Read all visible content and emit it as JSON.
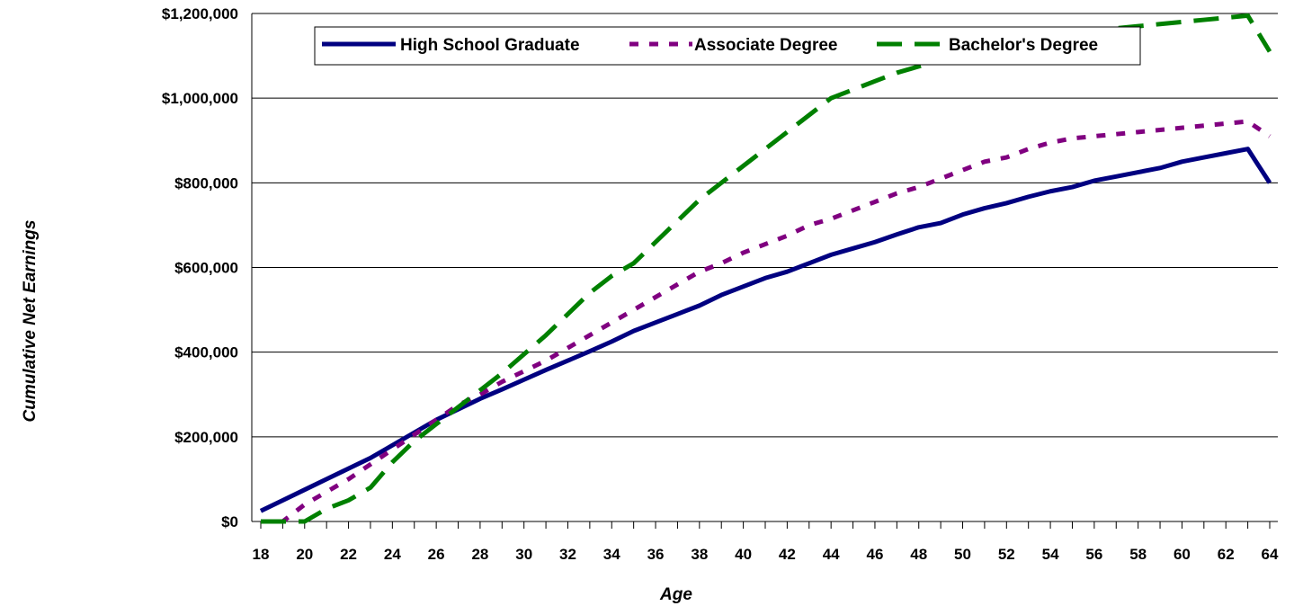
{
  "chart_data": {
    "type": "line",
    "title": "",
    "xlabel": "Age",
    "ylabel": "Cumulative Net Earnings",
    "x": [
      18,
      19,
      20,
      21,
      22,
      23,
      24,
      25,
      26,
      27,
      28,
      29,
      30,
      31,
      32,
      33,
      34,
      35,
      36,
      37,
      38,
      39,
      40,
      41,
      42,
      43,
      44,
      45,
      46,
      47,
      48,
      49,
      50,
      51,
      52,
      53,
      54,
      55,
      56,
      57,
      58,
      59,
      60,
      61,
      62,
      63,
      64
    ],
    "x_ticks": [
      "18",
      "20",
      "22",
      "24",
      "26",
      "28",
      "30",
      "32",
      "34",
      "36",
      "38",
      "40",
      "42",
      "44",
      "46",
      "48",
      "50",
      "52",
      "54",
      "56",
      "58",
      "60",
      "62",
      "64"
    ],
    "y_ticks": [
      "$0",
      "$200,000",
      "$400,000",
      "$600,000",
      "$800,000",
      "$1,000,000",
      "$1,200,000"
    ],
    "ylim": [
      0,
      1200000
    ],
    "grid": true,
    "legend_position": "top",
    "series": [
      {
        "name": "High School Graduate",
        "color": "#000080",
        "style": "solid",
        "values": [
          25000,
          50000,
          75000,
          100000,
          125000,
          150000,
          180000,
          210000,
          240000,
          265000,
          290000,
          312000,
          335000,
          358000,
          380000,
          402000,
          425000,
          450000,
          470000,
          490000,
          510000,
          535000,
          555000,
          575000,
          590000,
          610000,
          630000,
          645000,
          660000,
          678000,
          695000,
          705000,
          725000,
          740000,
          752000,
          767000,
          780000,
          790000,
          805000,
          815000,
          825000,
          835000,
          850000,
          860000,
          870000,
          880000,
          800000
        ]
      },
      {
        "name": "Associate Degree",
        "color": "#800080",
        "style": "dotted",
        "values": [
          0,
          0,
          40000,
          70000,
          100000,
          135000,
          170000,
          205000,
          240000,
          275000,
          300000,
          330000,
          355000,
          380000,
          410000,
          440000,
          470000,
          500000,
          530000,
          560000,
          590000,
          610000,
          635000,
          655000,
          675000,
          700000,
          715000,
          735000,
          755000,
          775000,
          790000,
          810000,
          830000,
          850000,
          860000,
          880000,
          895000,
          905000,
          910000,
          915000,
          920000,
          925000,
          930000,
          935000,
          940000,
          945000,
          910000
        ]
      },
      {
        "name": "Bachelor's Degree",
        "color": "#008000",
        "style": "dashed",
        "values": [
          0,
          0,
          0,
          30000,
          50000,
          80000,
          140000,
          190000,
          230000,
          270000,
          310000,
          350000,
          395000,
          440000,
          490000,
          540000,
          580000,
          610000,
          660000,
          710000,
          760000,
          800000,
          840000,
          880000,
          920000,
          960000,
          1000000,
          1020000,
          1040000,
          1060000,
          1075000,
          1090000,
          1100000,
          1110000,
          1120000,
          1130000,
          1140000,
          1150000,
          1160000,
          1165000,
          1170000,
          1175000,
          1180000,
          1185000,
          1190000,
          1195000,
          1110000
        ]
      }
    ]
  }
}
